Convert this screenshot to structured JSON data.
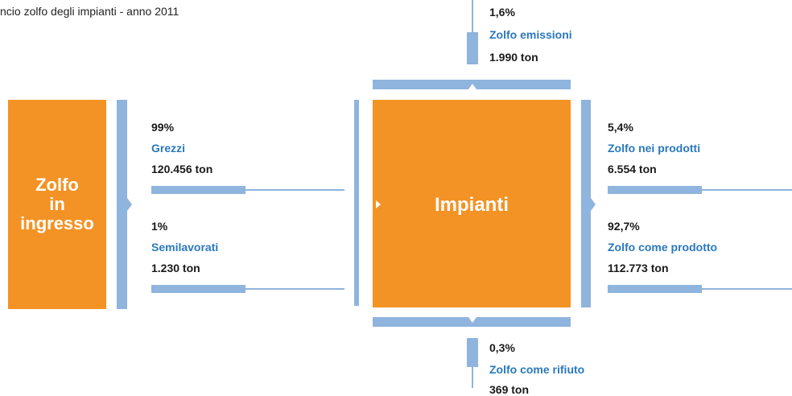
{
  "title": "ncio zolfo degli impianti - anno 2011",
  "input_box": {
    "lines": [
      "Zolfo",
      "in",
      "ingresso"
    ]
  },
  "plant_box": {
    "label": "Impianti"
  },
  "inputs": [
    {
      "percent": "99%",
      "name": "Grezzi",
      "amount": "120.456 ton"
    },
    {
      "percent": "1%",
      "name": "Semilavorati",
      "amount": "1.230 ton"
    }
  ],
  "emissions": {
    "percent": "1,6%",
    "name": "Zolfo emissioni",
    "amount": "1.990 ton"
  },
  "outputs": [
    {
      "percent": "5,4%",
      "name": "Zolfo nei prodotti",
      "amount": "6.554 ton"
    },
    {
      "percent": "92,7%",
      "name": "Zolfo come prodotto",
      "amount": "112.773 ton"
    }
  ],
  "waste": {
    "percent": "0,3%",
    "name": "Zolfo come rifiuto",
    "amount": "369 ton"
  }
}
